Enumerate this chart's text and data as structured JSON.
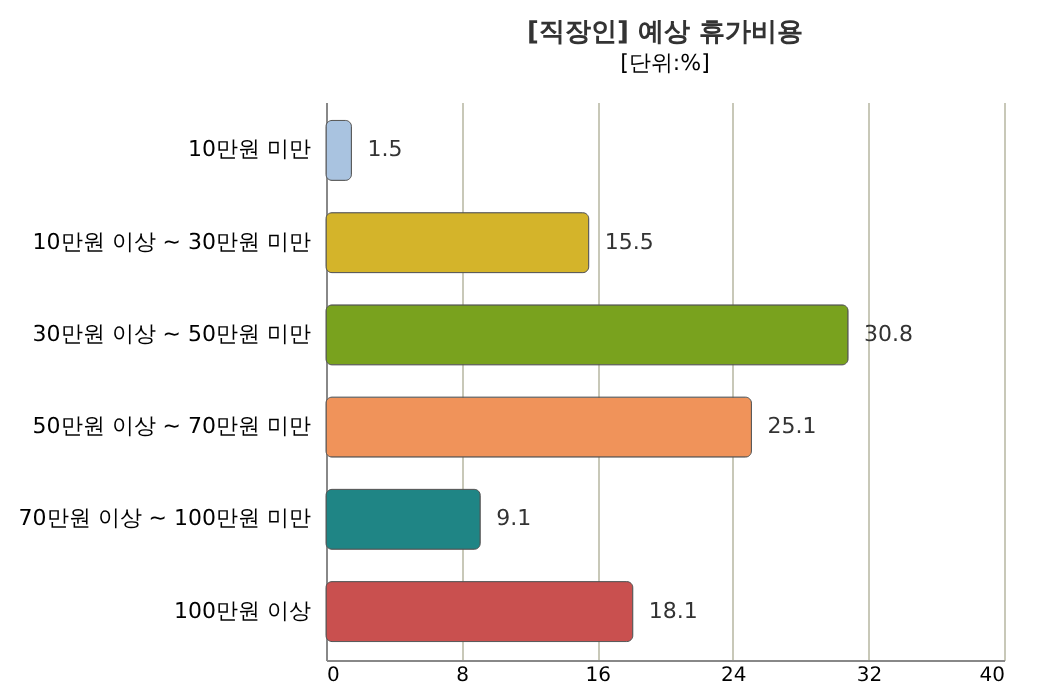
{
  "chart_data": {
    "type": "bar",
    "orientation": "horizontal",
    "title": "[직장인] 예상 휴가비용",
    "subtitle": "[단위:%]",
    "categories": [
      "10만원 미만",
      "10만원 이상 ~ 30만원 미만",
      "30만원 이상 ~ 50만원 미만",
      "50만원 이상 ~ 70만원 미만",
      "70만원 이상 ~ 100만원 미만",
      "100만원 이상"
    ],
    "values": [
      1.5,
      15.5,
      30.8,
      25.1,
      9.1,
      18.1
    ],
    "colors": [
      "#a9c3e0",
      "#d4b42a",
      "#79a21e",
      "#f0935a",
      "#1f8585",
      "#c9504f"
    ],
    "xlim": [
      0,
      40
    ],
    "xticks": [
      0,
      8,
      16,
      24,
      32,
      40
    ],
    "grid": "x",
    "data_labels": true
  }
}
